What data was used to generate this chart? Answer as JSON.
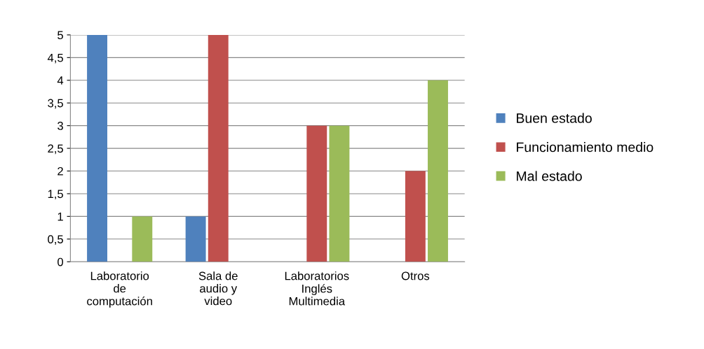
{
  "chart_data": {
    "type": "bar",
    "categories": [
      "Laboratorio\nde\ncomputación",
      "Sala de\naudio y\nvideo",
      "Laboratorios\nInglés\nMultimedia",
      "Otros"
    ],
    "series": [
      {
        "name": "Buen estado",
        "color": "#4f81bd",
        "values": [
          5,
          1,
          0,
          0
        ]
      },
      {
        "name": "Funcionamiento medio",
        "color": "#c0504d",
        "values": [
          0,
          5,
          3,
          2
        ]
      },
      {
        "name": "Mal estado",
        "color": "#9bbb59",
        "values": [
          1,
          0,
          3,
          4
        ]
      }
    ],
    "ylim": [
      0,
      5
    ],
    "yticks": [
      0,
      {
        "value": 0.5,
        "label": "0,5"
      },
      1,
      {
        "value": 1.5,
        "label": "1,5"
      },
      2,
      {
        "value": 2.5,
        "label": "2,5"
      },
      3,
      {
        "value": 3.5,
        "label": "3,5"
      },
      4,
      {
        "value": 4.5,
        "label": "4,5"
      },
      5
    ],
    "grid": "y",
    "legend": "right"
  }
}
